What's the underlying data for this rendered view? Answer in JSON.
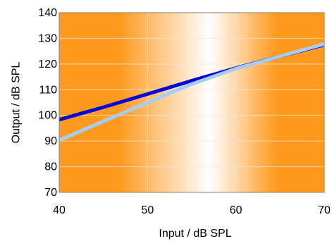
{
  "chart_data": {
    "type": "line",
    "title": "",
    "xlabel": "Input / dB SPL",
    "ylabel": "Output / dB SPL",
    "xlim": [
      40,
      70
    ],
    "ylim": [
      70,
      140
    ],
    "x_ticks": [
      40,
      50,
      60,
      70
    ],
    "y_ticks": [
      70,
      80,
      90,
      100,
      110,
      120,
      130,
      140
    ],
    "x_tick_labels": [
      "40",
      "50",
      "60",
      "70"
    ],
    "y_tick_labels": [
      "70",
      "80",
      "90",
      "100",
      "110",
      "120",
      "130",
      "140"
    ],
    "grid": true,
    "legend": "none",
    "background": {
      "type": "horizontal-gradient",
      "edge_color": "#ff9a1e",
      "center_color": "#ffffff",
      "center_x": 57
    },
    "series": [
      {
        "color": "#0000dd",
        "points": [
          [
            40,
            98.3
          ],
          [
            45,
            103.2
          ],
          [
            50,
            108.3
          ],
          [
            55,
            113.5
          ],
          [
            60,
            118.4
          ],
          [
            65,
            123
          ],
          [
            70,
            127.5
          ]
        ]
      },
      {
        "color": "#a6cdf4",
        "points": [
          [
            40,
            90.3
          ],
          [
            45,
            97.7
          ],
          [
            50,
            105
          ],
          [
            55,
            112.2
          ],
          [
            60,
            118.2
          ],
          [
            65,
            123
          ],
          [
            70,
            127.8
          ]
        ]
      }
    ]
  }
}
